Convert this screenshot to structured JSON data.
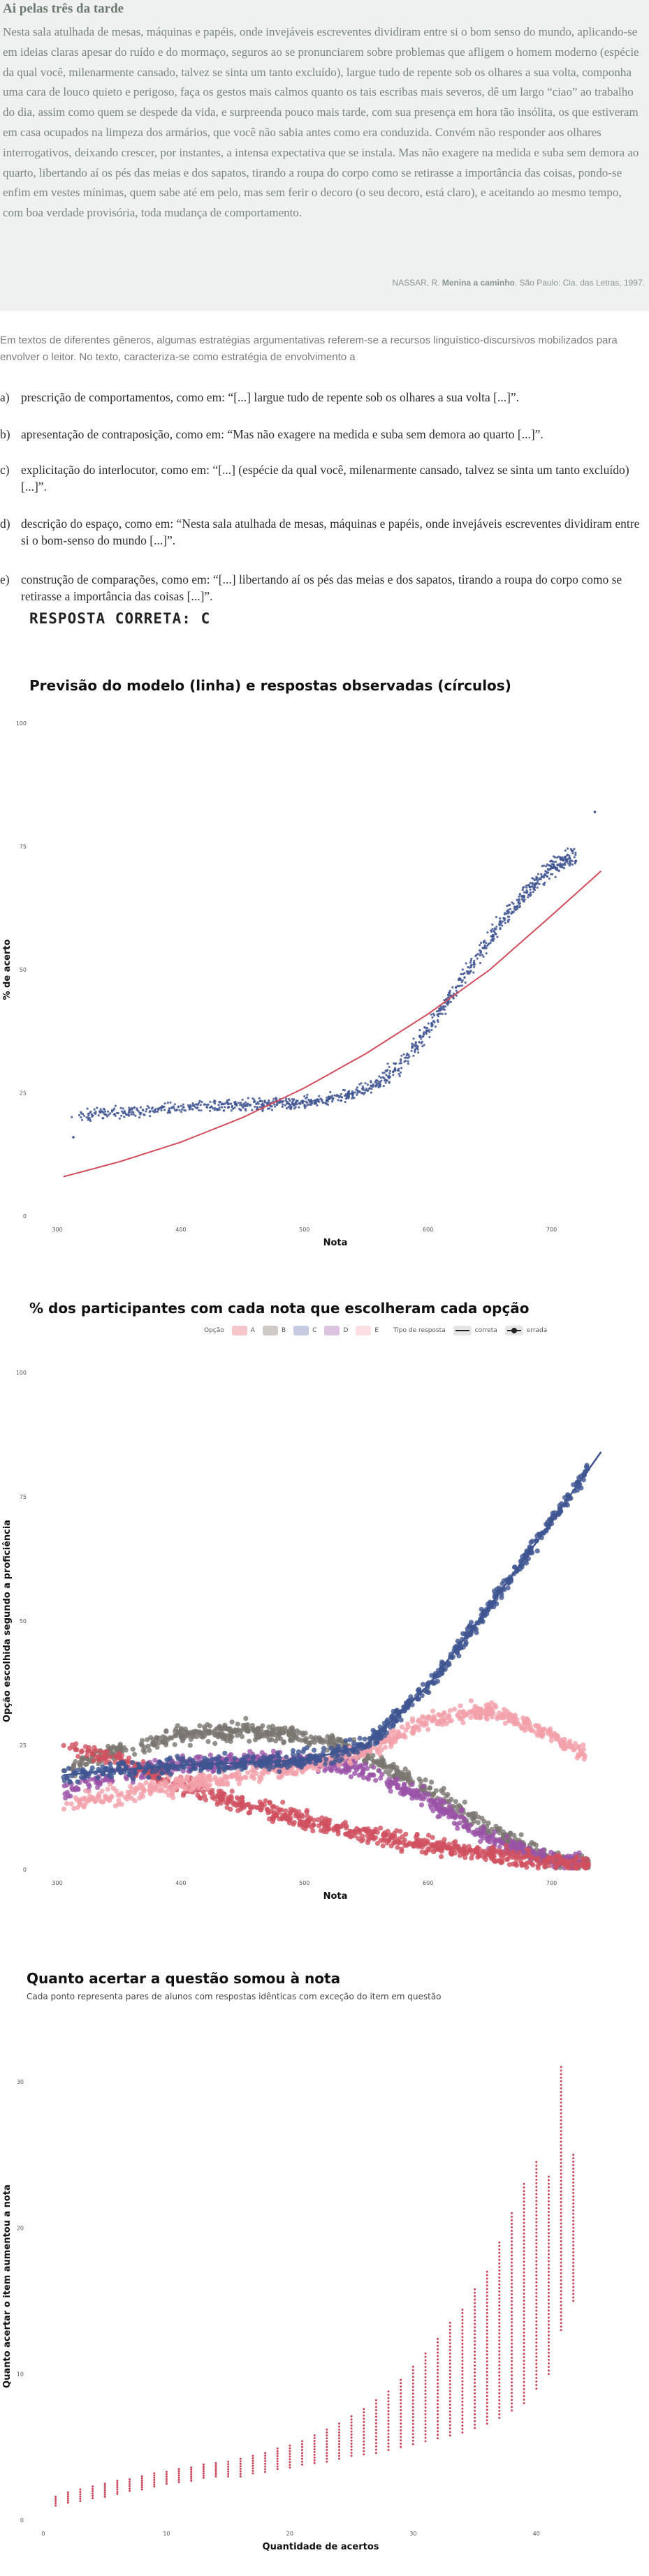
{
  "text_box": {
    "title": "Ai pelas três da tarde",
    "body": "Nesta sala atulhada de mesas, máquinas e papéis, onde invejáveis escreventes dividiram entre si o bom senso do mundo, aplicando-se em ideias claras apesar do ruído e do mormaço, seguros ao se pronunciarem sobre problemas que afligem o homem moderno (espécie da qual você, milenarmente cansado, talvez se sinta um tanto excluído), largue tudo de repente sob os olhares a sua volta, componha uma cara de louco quieto e perigoso, faça os gestos mais calmos quanto os tais escribas mais severos, dê um largo “ciao” ao trabalho do dia, assim como quem se despede da vida, e surpreenda pouco mais tarde, com sua presença em hora tão insólita, os que estiveram em casa ocupados na limpeza dos armários, que você não sabia antes como era conduzida. Convém não responder aos olhares interrogativos, deixando crescer, por instantes, a intensa expectativa que se instala. Mas não exagere na medida e suba sem demora ao quarto, libertando aí os pés das meias e dos sapatos, tirando a roupa do corpo como se  retirasse a importância das coisas, pondo-se enfim em vestes mínimas, quem sabe até em pelo, mas sem ferir o decoro (o seu decoro, está claro), e aceitando ao mesmo tempo, com boa verdade provisória, toda mudança de comportamento.",
    "source_prefix": "NASSAR, R. ",
    "source_book": "Menina a caminho",
    "source_suffix": ". São Paulo: Cia. das Letras, 1997."
  },
  "question": {
    "intro": "Em textos de diferentes gêneros, algumas estratégias argumentativas referem-se a recursos linguístico-discursivos mobilizados para envolver o leitor. No texto, caracteriza-se como estratégia de envolvimento a",
    "options": [
      {
        "letter": "a)",
        "text": "prescrição de comportamentos, como em: “[...] largue tudo de repente sob os olhares a sua volta [...]”."
      },
      {
        "letter": "b)",
        "text": "apresentação de contraposição, como em: “Mas não exagere na medida e suba sem demora ao quarto [...]”."
      },
      {
        "letter": "c)",
        "text": "explicitação do interlocutor, como em: “[...] (espécie da qual você, milenarmente cansado, talvez se sinta um tanto excluído) [...]”."
      },
      {
        "letter": "d)",
        "text": "descrição do espaço, como em: “Nesta sala atulhada de mesas, máquinas e papéis, onde invejáveis escreventes dividiram entre si o bom-senso do mundo [...]”."
      },
      {
        "letter": "e)",
        "text": "construção de comparações, como em: “[...] libertando aí os pés das meias e dos sapatos, tirando a roupa do corpo como se retirasse a importância das coisas [...]”."
      }
    ],
    "answer": "RESPOSTA CORRETA: C"
  },
  "colors": {
    "fit_line": "#d24d5c",
    "correct": "#3f5591",
    "A": "#d0505f",
    "B": "#7a7670",
    "D": "#9a52a8",
    "E": "#f3a0aa",
    "diff": "#c9455a"
  },
  "chart_data": [
    {
      "type": "scatter",
      "title": "Previsão do modelo (linha) e respostas observadas (círculos)",
      "xlabel": "Nota",
      "ylabel": "% de acerto",
      "xlim": [
        300,
        750
      ],
      "ylim": [
        0,
        100
      ],
      "x_ticks": [
        "300",
        "400",
        "500",
        "600",
        "700"
      ],
      "y_ticks": [
        "0",
        "25",
        "50",
        "75",
        "100"
      ],
      "observed_curve": {
        "x": [
          300,
          350,
          400,
          450,
          500,
          530,
          560,
          580,
          600,
          620,
          640,
          660,
          680,
          700,
          720
        ],
        "y": [
          20,
          21,
          22,
          22.5,
          23,
          24,
          27,
          31,
          38,
          45,
          53,
          60,
          66,
          71,
          73
        ]
      },
      "model_curve": {
        "x": [
          305,
          350,
          400,
          450,
          500,
          550,
          600,
          650,
          700,
          740
        ],
        "y": [
          8,
          11,
          15,
          20,
          26,
          33,
          41,
          50,
          61,
          70
        ]
      }
    },
    {
      "type": "scatter",
      "title": "% dos participantes com cada nota que escolheram cada opção",
      "xlabel": "Nota",
      "ylabel": "Opção escolhida segundo a proficiência",
      "xlim": [
        300,
        750
      ],
      "ylim": [
        0,
        100
      ],
      "x_ticks": [
        "300",
        "400",
        "500",
        "600",
        "700"
      ],
      "y_ticks": [
        "0",
        "25",
        "50",
        "75",
        "100"
      ],
      "legend": {
        "option_label": "Opção",
        "options": [
          "A",
          "B",
          "C",
          "D",
          "E"
        ],
        "type_label": "Tipo de resposta",
        "types": [
          "correta",
          "errada"
        ],
        "placement": "top"
      },
      "series": [
        {
          "name": "A",
          "x": [
            305,
            350,
            400,
            450,
            500,
            550,
            600,
            650,
            700,
            740
          ],
          "y": [
            25,
            22,
            17,
            13,
            10,
            7,
            5,
            3,
            1.5,
            1
          ]
        },
        {
          "name": "B",
          "x": [
            305,
            350,
            400,
            450,
            500,
            550,
            600,
            650,
            700,
            740
          ],
          "y": [
            20,
            24,
            27,
            28,
            27,
            23,
            16,
            8,
            2,
            1
          ]
        },
        {
          "name": "C",
          "x": [
            305,
            350,
            400,
            450,
            500,
            550,
            600,
            650,
            700,
            740
          ],
          "y": [
            19,
            20,
            21,
            21.5,
            22,
            25,
            37,
            53,
            70,
            84
          ]
        },
        {
          "name": "D",
          "x": [
            305,
            350,
            400,
            450,
            500,
            550,
            600,
            650,
            700,
            740
          ],
          "y": [
            16,
            19,
            21,
            22,
            22,
            20,
            14,
            6,
            2,
            1
          ]
        },
        {
          "name": "E",
          "x": [
            305,
            350,
            400,
            450,
            500,
            550,
            600,
            650,
            700,
            740
          ],
          "y": [
            13,
            15,
            17,
            19,
            21,
            24,
            30,
            32,
            27,
            21
          ]
        }
      ]
    },
    {
      "type": "scatter",
      "title": "Quanto acertar a questão somou à nota",
      "subtitle": "Cada ponto representa pares de alunos com respostas idênticas com exceção do item em questão",
      "xlabel": "Quantidade de acertos",
      "ylabel": "Quanto acertar o item aumentou a nota",
      "xlim": [
        0,
        45
      ],
      "ylim": [
        0,
        32
      ],
      "x_ticks": [
        "0",
        "10",
        "20",
        "30",
        "40"
      ],
      "y_ticks": [
        "0",
        "10",
        "20",
        "30"
      ],
      "columns": [
        {
          "x": 1,
          "lo": 1.0,
          "hi": 1.6
        },
        {
          "x": 2,
          "lo": 1.2,
          "hi": 1.9
        },
        {
          "x": 3,
          "lo": 1.3,
          "hi": 2.1
        },
        {
          "x": 4,
          "lo": 1.5,
          "hi": 2.3
        },
        {
          "x": 5,
          "lo": 1.6,
          "hi": 2.5
        },
        {
          "x": 6,
          "lo": 1.8,
          "hi": 2.7
        },
        {
          "x": 7,
          "lo": 2.0,
          "hi": 2.8
        },
        {
          "x": 8,
          "lo": 2.1,
          "hi": 3.0
        },
        {
          "x": 9,
          "lo": 2.3,
          "hi": 3.2
        },
        {
          "x": 10,
          "lo": 2.5,
          "hi": 3.3
        },
        {
          "x": 11,
          "lo": 2.6,
          "hi": 3.5
        },
        {
          "x": 12,
          "lo": 2.7,
          "hi": 3.6
        },
        {
          "x": 13,
          "lo": 2.9,
          "hi": 3.8
        },
        {
          "x": 14,
          "lo": 3.0,
          "hi": 3.9
        },
        {
          "x": 15,
          "lo": 3.0,
          "hi": 4.0
        },
        {
          "x": 16,
          "lo": 3.0,
          "hi": 4.2
        },
        {
          "x": 17,
          "lo": 3.2,
          "hi": 4.4
        },
        {
          "x": 18,
          "lo": 3.3,
          "hi": 4.6
        },
        {
          "x": 19,
          "lo": 3.5,
          "hi": 4.9
        },
        {
          "x": 20,
          "lo": 3.6,
          "hi": 5.1
        },
        {
          "x": 21,
          "lo": 3.8,
          "hi": 5.4
        },
        {
          "x": 22,
          "lo": 3.9,
          "hi": 5.8
        },
        {
          "x": 23,
          "lo": 4.0,
          "hi": 6.2
        },
        {
          "x": 24,
          "lo": 4.2,
          "hi": 6.6
        },
        {
          "x": 25,
          "lo": 4.4,
          "hi": 7.1
        },
        {
          "x": 26,
          "lo": 4.5,
          "hi": 7.6
        },
        {
          "x": 27,
          "lo": 4.6,
          "hi": 8.2
        },
        {
          "x": 28,
          "lo": 4.8,
          "hi": 8.8
        },
        {
          "x": 29,
          "lo": 5.0,
          "hi": 9.6
        },
        {
          "x": 30,
          "lo": 5.2,
          "hi": 10.5
        },
        {
          "x": 31,
          "lo": 5.4,
          "hi": 11.4
        },
        {
          "x": 32,
          "lo": 5.6,
          "hi": 12.4
        },
        {
          "x": 33,
          "lo": 5.8,
          "hi": 13.5
        },
        {
          "x": 34,
          "lo": 6.0,
          "hi": 14.4
        },
        {
          "x": 35,
          "lo": 6.3,
          "hi": 15.8
        },
        {
          "x": 36,
          "lo": 6.6,
          "hi": 17.0
        },
        {
          "x": 37,
          "lo": 7.0,
          "hi": 19.0
        },
        {
          "x": 38,
          "lo": 7.5,
          "hi": 21.0
        },
        {
          "x": 39,
          "lo": 8.0,
          "hi": 23.0
        },
        {
          "x": 40,
          "lo": 9.0,
          "hi": 24.5
        },
        {
          "x": 41,
          "lo": 10.0,
          "hi": 23.5
        },
        {
          "x": 42,
          "lo": 13.0,
          "hi": 31.0
        },
        {
          "x": 43,
          "lo": 15.0,
          "hi": 25.0
        }
      ]
    }
  ]
}
